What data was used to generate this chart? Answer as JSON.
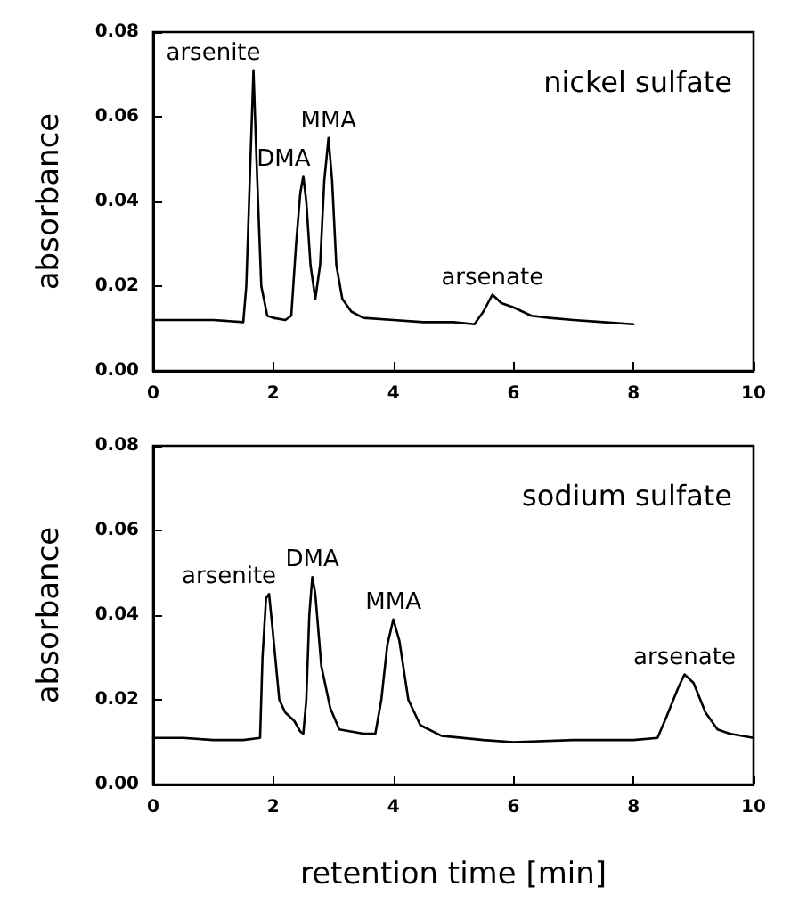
{
  "chart_data": [
    {
      "type": "line",
      "ylabel": "absorbance",
      "annotations": [
        "nickel sulfate",
        {
          "text": "arsenite",
          "x": 1.67,
          "y": 0.071
        },
        {
          "text": "DMA",
          "x": 2.5,
          "y": 0.046
        },
        {
          "text": "MMA",
          "x": 2.92,
          "y": 0.055
        },
        {
          "text": "arsenate",
          "x": 5.65,
          "y": 0.018
        }
      ],
      "series": [
        {
          "color": "#000000",
          "x": [
            0,
            0.5,
            1,
            1.5,
            1.55,
            1.62,
            1.67,
            1.72,
            1.8,
            1.9,
            2.0,
            2.2,
            2.3,
            2.38,
            2.45,
            2.5,
            2.55,
            2.62,
            2.7,
            2.78,
            2.85,
            2.92,
            2.98,
            3.05,
            3.15,
            3.3,
            3.5,
            4,
            4.5,
            5,
            5.35,
            5.5,
            5.65,
            5.8,
            6.0,
            6.3,
            6.6,
            7,
            7.5,
            8
          ],
          "values": [
            0.012,
            0.012,
            0.012,
            0.0115,
            0.02,
            0.05,
            0.071,
            0.05,
            0.02,
            0.013,
            0.0125,
            0.012,
            0.013,
            0.03,
            0.042,
            0.046,
            0.04,
            0.025,
            0.017,
            0.025,
            0.045,
            0.055,
            0.045,
            0.025,
            0.017,
            0.014,
            0.0125,
            0.012,
            0.0115,
            0.0115,
            0.011,
            0.014,
            0.018,
            0.016,
            0.015,
            0.013,
            0.0125,
            0.012,
            0.0115,
            0.011
          ]
        }
      ],
      "xlim": [
        0,
        10
      ],
      "xticks": [
        0,
        2,
        4,
        6,
        8,
        10
      ],
      "ylim": [
        0,
        0.08
      ],
      "yticks": [
        {
          "value": 0,
          "label": "0.00"
        },
        {
          "value": 0.02,
          "label": "0.02"
        },
        {
          "value": 0.04,
          "label": "0.04"
        },
        {
          "value": 0.06,
          "label": "0.06"
        },
        {
          "value": 0.08,
          "label": "0.08"
        }
      ],
      "grid": false
    },
    {
      "type": "line",
      "xlabel": "retention time [min]",
      "ylabel": "absorbance",
      "annotations": [
        "sodium sulfate",
        {
          "text": "arsenite",
          "x": 1.93,
          "y": 0.045
        },
        {
          "text": "DMA",
          "x": 2.65,
          "y": 0.049
        },
        {
          "text": "MMA",
          "x": 4.0,
          "y": 0.039
        },
        {
          "text": "arsenate",
          "x": 8.85,
          "y": 0.026
        }
      ],
      "series": [
        {
          "color": "#000000",
          "x": [
            0,
            0.5,
            1,
            1.5,
            1.78,
            1.82,
            1.88,
            1.93,
            2.0,
            2.1,
            2.2,
            2.35,
            2.45,
            2.5,
            2.55,
            2.6,
            2.65,
            2.7,
            2.8,
            2.95,
            3.1,
            3.5,
            3.7,
            3.8,
            3.9,
            4.0,
            4.1,
            4.25,
            4.45,
            4.8,
            5.5,
            6,
            7,
            8,
            8.4,
            8.55,
            8.75,
            8.85,
            9.0,
            9.2,
            9.4,
            9.6,
            10
          ],
          "values": [
            0.011,
            0.011,
            0.0105,
            0.0105,
            0.011,
            0.03,
            0.044,
            0.045,
            0.035,
            0.02,
            0.017,
            0.015,
            0.0125,
            0.012,
            0.02,
            0.04,
            0.049,
            0.045,
            0.028,
            0.018,
            0.013,
            0.012,
            0.012,
            0.02,
            0.033,
            0.039,
            0.034,
            0.02,
            0.014,
            0.0115,
            0.0105,
            0.01,
            0.0105,
            0.0105,
            0.011,
            0.016,
            0.023,
            0.026,
            0.024,
            0.017,
            0.013,
            0.012,
            0.011
          ]
        }
      ],
      "xlim": [
        0,
        10
      ],
      "xticks": [
        0,
        2,
        4,
        6,
        8,
        10
      ],
      "ylim": [
        0,
        0.08
      ],
      "yticks": [
        {
          "value": 0,
          "label": "0.00"
        },
        {
          "value": 0.02,
          "label": "0.02"
        },
        {
          "value": 0.04,
          "label": "0.04"
        },
        {
          "value": 0.06,
          "label": "0.06"
        },
        {
          "value": 0.08,
          "label": "0.08"
        }
      ],
      "grid": false
    }
  ]
}
